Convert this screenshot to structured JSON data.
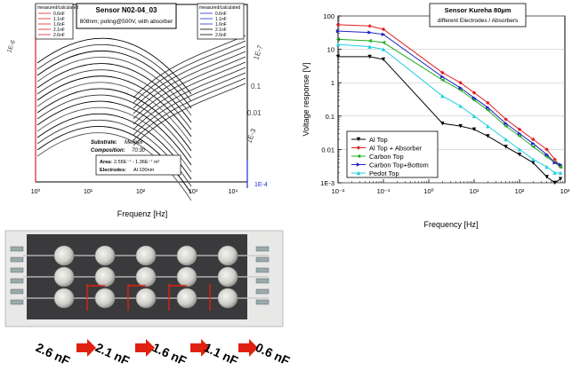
{
  "left_chart": {
    "title": "Sensor N02-04_03",
    "subtitle": "808nm; poling@500V, with absorber",
    "xlabel": "Frequenz [Hz]",
    "x_ticks": [
      "10⁰",
      "10¹",
      "10²",
      "10³",
      "10⁴"
    ],
    "right_ticks": [
      "1E-7",
      "0.1",
      "0.01",
      "1E-3",
      "1E-4"
    ],
    "left_ticks": [
      "1E-6"
    ],
    "legend_left": {
      "title": "measured/calculated",
      "items": [
        "0.6nF",
        "1.1nF",
        "1.6nF",
        "2.1nF",
        "2.6nF"
      ]
    },
    "legend_right": {
      "title": "measured/calculated",
      "items": [
        "0.6nF",
        "1.1nF",
        "1.6nF",
        "2.1nF",
        "2.6nF"
      ]
    },
    "info": {
      "substrate_label": "Substrate:",
      "substrate_value": "Melinex",
      "composition_label": "Composition:",
      "composition_value": "70:30",
      "area_label": "Area:",
      "area_value": "2.55E⁻⁷ - 1.36E⁻⁷ m²",
      "electrodes_label": "Electrodes:",
      "electrodes_value": "Al 100nm"
    },
    "colors": {
      "red": "#e02020",
      "blue": "#2030d0",
      "black": "#000000"
    }
  },
  "chart_data": {
    "type": "line",
    "title": "Sensor Kureha 80µm",
    "subtitle": "different Electrodes / Absorbers",
    "xlabel": "Frequency [Hz]",
    "ylabel": "Voltage response [V]",
    "xscale": "log",
    "yscale": "log",
    "xlim": [
      0.01,
      1000
    ],
    "ylim": [
      0.001,
      100
    ],
    "x_ticks": [
      "10⁻²",
      "10⁻¹",
      "10⁰",
      "10¹",
      "10²",
      "10³"
    ],
    "y_ticks": [
      "1E-3",
      "0.01",
      "0.1",
      "1",
      "10",
      "100"
    ],
    "legend_position": "lower-left",
    "series": [
      {
        "name": "Al Top",
        "color": "#000000",
        "marker": "down-triangle",
        "points": [
          [
            0.01,
            6
          ],
          [
            0.05,
            6
          ],
          [
            0.1,
            5
          ],
          [
            2,
            0.06
          ],
          [
            5,
            0.05
          ],
          [
            10,
            0.04
          ],
          [
            20,
            0.025
          ],
          [
            50,
            0.012
          ],
          [
            100,
            0.007
          ],
          [
            200,
            0.004
          ],
          [
            400,
            0.0015
          ],
          [
            600,
            0.001
          ],
          [
            800,
            0.0013
          ]
        ]
      },
      {
        "name": "Al Top + Absorber",
        "color": "#e02020",
        "marker": "diamond",
        "points": [
          [
            0.01,
            55
          ],
          [
            0.05,
            50
          ],
          [
            0.1,
            40
          ],
          [
            2,
            2
          ],
          [
            5,
            1
          ],
          [
            10,
            0.5
          ],
          [
            20,
            0.25
          ],
          [
            50,
            0.08
          ],
          [
            100,
            0.04
          ],
          [
            200,
            0.02
          ],
          [
            400,
            0.01
          ],
          [
            600,
            0.005
          ],
          [
            800,
            0.003
          ]
        ]
      },
      {
        "name": "Carbon Top",
        "color": "#20b020",
        "marker": "left-triangle",
        "points": [
          [
            0.01,
            20
          ],
          [
            0.05,
            18
          ],
          [
            0.1,
            16
          ],
          [
            2,
            1.2
          ],
          [
            5,
            0.6
          ],
          [
            10,
            0.3
          ],
          [
            20,
            0.15
          ],
          [
            50,
            0.05
          ],
          [
            100,
            0.025
          ],
          [
            200,
            0.012
          ],
          [
            400,
            0.006
          ],
          [
            600,
            0.004
          ],
          [
            800,
            0.003
          ]
        ]
      },
      {
        "name": "Carbon Top+Bottom",
        "color": "#2020c0",
        "marker": "right-triangle",
        "points": [
          [
            0.01,
            35
          ],
          [
            0.05,
            32
          ],
          [
            0.1,
            28
          ],
          [
            2,
            1.5
          ],
          [
            5,
            0.7
          ],
          [
            10,
            0.35
          ],
          [
            20,
            0.18
          ],
          [
            50,
            0.06
          ],
          [
            100,
            0.03
          ],
          [
            200,
            0.015
          ],
          [
            400,
            0.007
          ],
          [
            600,
            0.004
          ],
          [
            800,
            0.0035
          ]
        ]
      },
      {
        "name": "Pedot Top",
        "color": "#20d0e0",
        "marker": "triangle",
        "points": [
          [
            0.01,
            14
          ],
          [
            0.05,
            12
          ],
          [
            0.1,
            10
          ],
          [
            2,
            0.4
          ],
          [
            5,
            0.2
          ],
          [
            10,
            0.1
          ],
          [
            20,
            0.05
          ],
          [
            50,
            0.02
          ],
          [
            100,
            0.01
          ],
          [
            200,
            0.005
          ],
          [
            400,
            0.003
          ],
          [
            600,
            0.002
          ],
          [
            800,
            0.002
          ]
        ]
      }
    ]
  },
  "photo": {
    "capacitances": [
      "2.6 nF",
      "2.1 nF",
      "1.6 nF",
      "1.1 nF",
      "0.6 nF"
    ],
    "arrow_color": "#e02010"
  }
}
